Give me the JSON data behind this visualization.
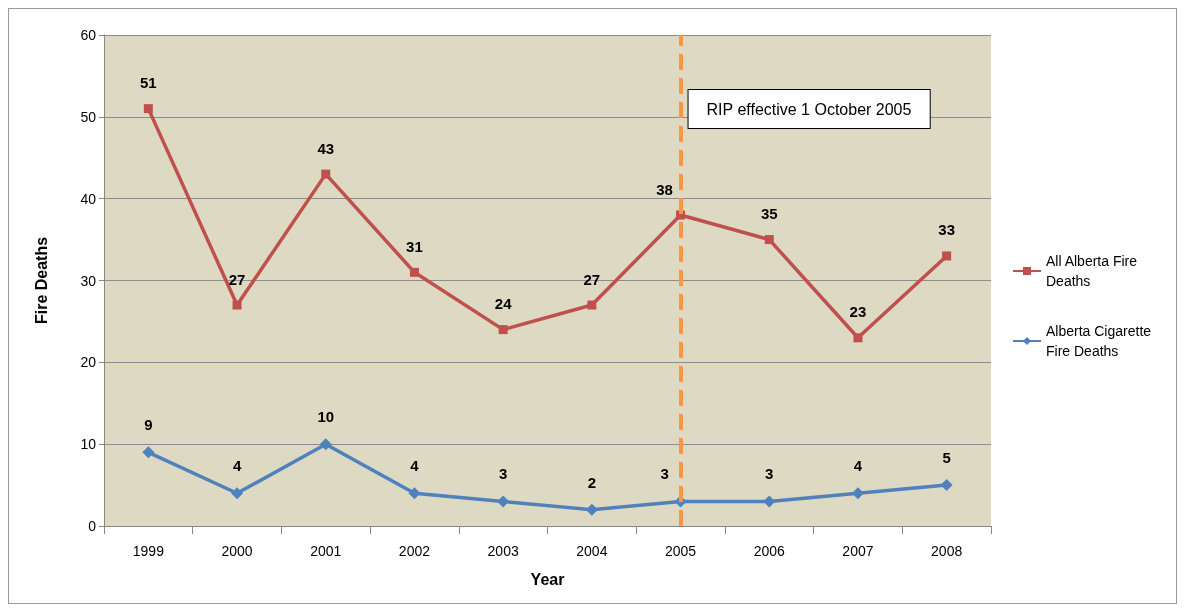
{
  "chart_data": {
    "type": "line",
    "xlabel": "Year",
    "ylabel": "Fire Deaths",
    "categories": [
      "1999",
      "2000",
      "2001",
      "2002",
      "2003",
      "2004",
      "2005",
      "2006",
      "2007",
      "2008"
    ],
    "series": [
      {
        "name": "All Alberta Fire Deaths",
        "color": "#c0504d",
        "marker": "square",
        "values": [
          51,
          27,
          43,
          31,
          24,
          27,
          38,
          35,
          23,
          33
        ]
      },
      {
        "name": "Alberta Cigarette Fire Deaths",
        "color": "#4f81bd",
        "marker": "diamond",
        "values": [
          9,
          4,
          10,
          4,
          3,
          2,
          3,
          3,
          4,
          5
        ]
      }
    ],
    "ylim": [
      0,
      60
    ],
    "yticks": [
      0,
      10,
      20,
      30,
      40,
      50,
      60
    ],
    "grid": "y",
    "legend": "right",
    "data_labels": true,
    "ref_lines": [
      {
        "axis": "x",
        "value": "2005",
        "label": "RIP effective 1 October 2005",
        "color": "#f79646",
        "line_style": "dashed"
      }
    ]
  }
}
